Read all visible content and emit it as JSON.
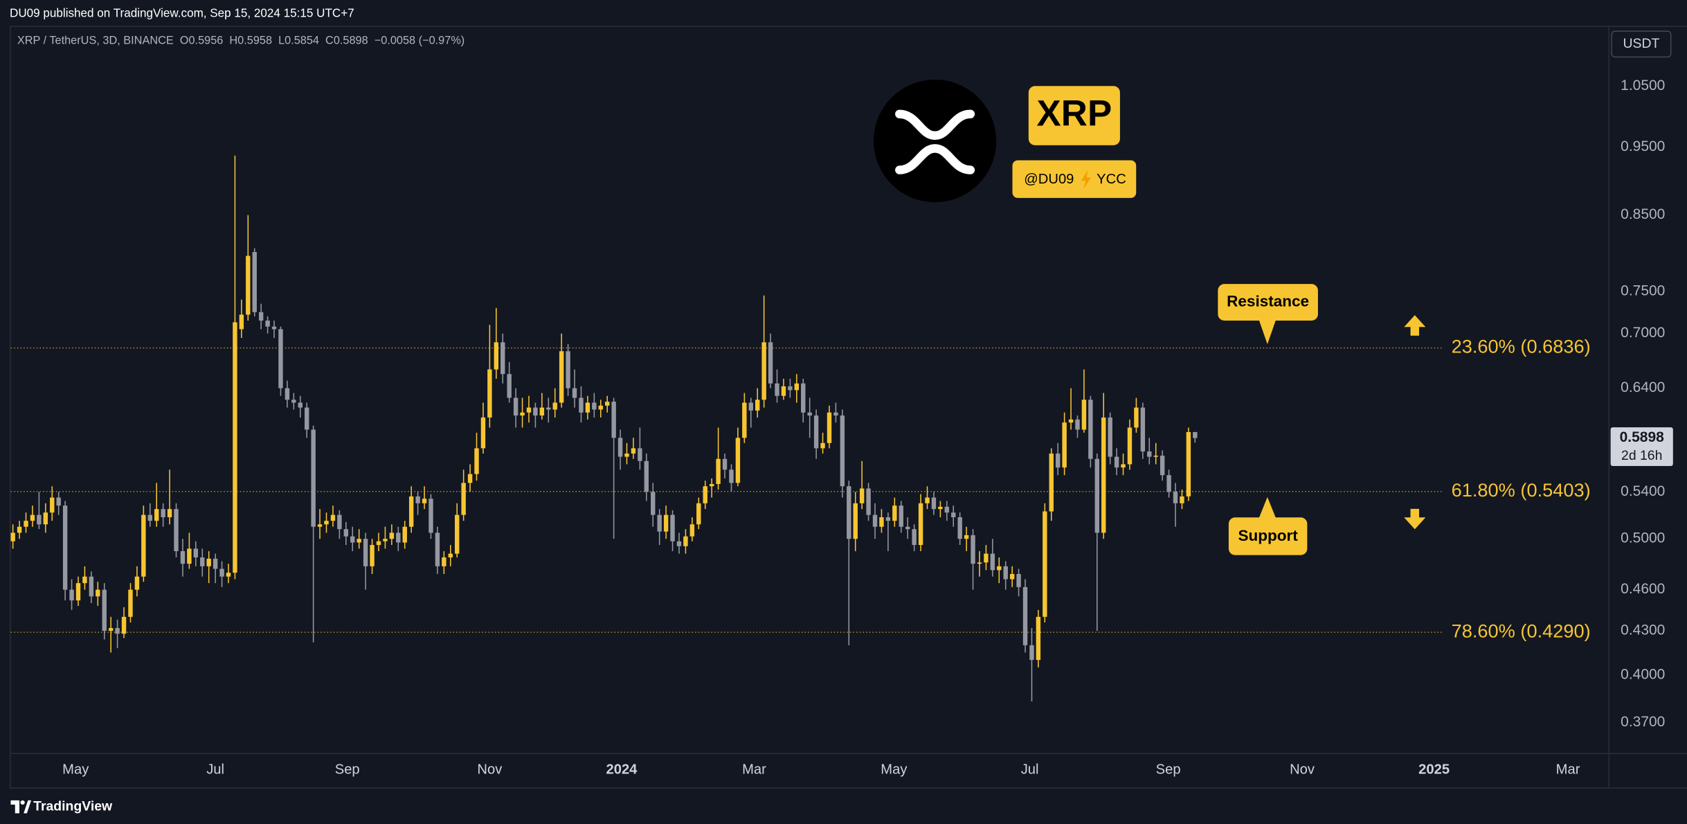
{
  "header": "DU09 published on TradingView.com, Sep 15, 2024 15:15 UTC+7",
  "chart_data": {
    "type": "candlestick",
    "title": "XRP / TetherUS, 3D, BINANCE  O0.5956  H0.5958  L0.5854  C0.5898  −0.0058 (−0.97%)",
    "up_color": "#f7c531",
    "down_color": "#9598a1",
    "log_scale": true,
    "grid": false,
    "ylim": [
      0.352,
      1.157
    ],
    "yticks": [
      {
        "value": 1.05,
        "label": "1.0500"
      },
      {
        "value": 0.95,
        "label": "0.9500"
      },
      {
        "value": 0.85,
        "label": "0.8500"
      },
      {
        "value": 0.75,
        "label": "0.7500"
      },
      {
        "value": 0.7,
        "label": "0.7000"
      },
      {
        "value": 0.64,
        "label": "0.6400"
      },
      {
        "value": 0.54,
        "label": "0.5400"
      },
      {
        "value": 0.5,
        "label": "0.5000"
      },
      {
        "value": 0.46,
        "label": "0.4600"
      },
      {
        "value": 0.43,
        "label": "0.4300"
      },
      {
        "value": 0.4,
        "label": "0.4000"
      },
      {
        "value": 0.37,
        "label": "0.3700"
      }
    ],
    "xlim": [
      -0.33,
      244.3
    ],
    "xticks": [
      {
        "value": 9.6,
        "label": "May"
      },
      {
        "value": 31.0,
        "label": "Jul"
      },
      {
        "value": 51.2,
        "label": "Sep"
      },
      {
        "value": 73.0,
        "label": "Nov"
      },
      {
        "value": 93.2,
        "label": "2024"
      },
      {
        "value": 113.5,
        "label": "Mar"
      },
      {
        "value": 134.9,
        "label": "May"
      },
      {
        "value": 155.7,
        "label": "Jul"
      },
      {
        "value": 176.9,
        "label": "Sep"
      },
      {
        "value": 197.4,
        "label": "Nov"
      },
      {
        "value": 217.6,
        "label": "2025"
      },
      {
        "value": 238.1,
        "label": "Mar"
      }
    ],
    "currency": "USDT",
    "last_price": 0.5898,
    "countdown": "2d 16h",
    "fib_color": "#f7c531",
    "fib_levels": [
      {
        "value": 0.6836,
        "label": "23.60% (0.6836)"
      },
      {
        "value": 0.5403,
        "label": "61.80% (0.5403)"
      },
      {
        "value": 0.429,
        "label": "78.60% (0.4290)"
      }
    ],
    "annotations": {
      "symbol": "XRP",
      "handle": "@DU09",
      "group": "YCC",
      "resistance": "Resistance",
      "support": "Support"
    },
    "candles": [
      [
        0.498,
        0.512,
        0.492,
        0.505
      ],
      [
        0.505,
        0.515,
        0.5,
        0.51
      ],
      [
        0.51,
        0.522,
        0.505,
        0.515
      ],
      [
        0.515,
        0.528,
        0.51,
        0.52
      ],
      [
        0.52,
        0.54,
        0.508,
        0.512
      ],
      [
        0.512,
        0.53,
        0.505,
        0.522
      ],
      [
        0.522,
        0.545,
        0.515,
        0.535
      ],
      [
        0.535,
        0.54,
        0.52,
        0.528
      ],
      [
        0.528,
        0.532,
        0.452,
        0.46
      ],
      [
        0.46,
        0.468,
        0.445,
        0.452
      ],
      [
        0.452,
        0.47,
        0.448,
        0.465
      ],
      [
        0.465,
        0.478,
        0.46,
        0.47
      ],
      [
        0.47,
        0.474,
        0.45,
        0.455
      ],
      [
        0.455,
        0.466,
        0.448,
        0.46
      ],
      [
        0.46,
        0.465,
        0.424,
        0.43
      ],
      [
        0.43,
        0.44,
        0.415,
        0.432
      ],
      [
        0.432,
        0.438,
        0.418,
        0.428
      ],
      [
        0.428,
        0.447,
        0.425,
        0.44
      ],
      [
        0.44,
        0.465,
        0.436,
        0.46
      ],
      [
        0.46,
        0.478,
        0.455,
        0.47
      ],
      [
        0.47,
        0.528,
        0.466,
        0.52
      ],
      [
        0.52,
        0.53,
        0.51,
        0.515
      ],
      [
        0.515,
        0.548,
        0.51,
        0.525
      ],
      [
        0.525,
        0.53,
        0.51,
        0.518
      ],
      [
        0.518,
        0.56,
        0.512,
        0.525
      ],
      [
        0.525,
        0.53,
        0.485,
        0.49
      ],
      [
        0.49,
        0.5,
        0.47,
        0.48
      ],
      [
        0.48,
        0.505,
        0.476,
        0.492
      ],
      [
        0.492,
        0.498,
        0.478,
        0.485
      ],
      [
        0.485,
        0.492,
        0.47,
        0.478
      ],
      [
        0.478,
        0.49,
        0.465,
        0.484
      ],
      [
        0.484,
        0.488,
        0.465,
        0.476
      ],
      [
        0.476,
        0.482,
        0.462,
        0.47
      ],
      [
        0.47,
        0.48,
        0.465,
        0.473
      ],
      [
        0.473,
        0.937,
        0.468,
        0.713
      ],
      [
        0.705,
        0.74,
        0.695,
        0.722
      ],
      [
        0.722,
        0.85,
        0.715,
        0.795
      ],
      [
        0.8,
        0.805,
        0.72,
        0.725
      ],
      [
        0.725,
        0.735,
        0.705,
        0.715
      ],
      [
        0.715,
        0.72,
        0.7,
        0.708
      ],
      [
        0.708,
        0.715,
        0.695,
        0.705
      ],
      [
        0.705,
        0.708,
        0.632,
        0.64
      ],
      [
        0.64,
        0.648,
        0.62,
        0.628
      ],
      [
        0.628,
        0.635,
        0.618,
        0.625
      ],
      [
        0.625,
        0.632,
        0.61,
        0.62
      ],
      [
        0.62,
        0.625,
        0.59,
        0.598
      ],
      [
        0.598,
        0.602,
        0.422,
        0.51
      ],
      [
        0.51,
        0.525,
        0.5,
        0.512
      ],
      [
        0.512,
        0.522,
        0.505,
        0.515
      ],
      [
        0.515,
        0.528,
        0.51,
        0.52
      ],
      [
        0.52,
        0.524,
        0.5,
        0.508
      ],
      [
        0.508,
        0.514,
        0.495,
        0.502
      ],
      [
        0.502,
        0.51,
        0.49,
        0.497
      ],
      [
        0.497,
        0.508,
        0.492,
        0.5
      ],
      [
        0.5,
        0.505,
        0.46,
        0.478
      ],
      [
        0.478,
        0.5,
        0.472,
        0.495
      ],
      [
        0.495,
        0.505,
        0.49,
        0.498
      ],
      [
        0.498,
        0.51,
        0.492,
        0.5
      ],
      [
        0.5,
        0.512,
        0.495,
        0.505
      ],
      [
        0.505,
        0.51,
        0.49,
        0.497
      ],
      [
        0.497,
        0.515,
        0.492,
        0.51
      ],
      [
        0.51,
        0.545,
        0.505,
        0.536
      ],
      [
        0.536,
        0.54,
        0.52,
        0.53
      ],
      [
        0.53,
        0.545,
        0.525,
        0.534
      ],
      [
        0.534,
        0.538,
        0.5,
        0.505
      ],
      [
        0.505,
        0.51,
        0.472,
        0.478
      ],
      [
        0.478,
        0.49,
        0.472,
        0.485
      ],
      [
        0.485,
        0.495,
        0.478,
        0.488
      ],
      [
        0.488,
        0.53,
        0.485,
        0.52
      ],
      [
        0.52,
        0.56,
        0.515,
        0.548
      ],
      [
        0.548,
        0.565,
        0.54,
        0.556
      ],
      [
        0.556,
        0.595,
        0.55,
        0.58
      ],
      [
        0.58,
        0.625,
        0.575,
        0.61
      ],
      [
        0.61,
        0.71,
        0.6,
        0.66
      ],
      [
        0.66,
        0.73,
        0.65,
        0.69
      ],
      [
        0.69,
        0.7,
        0.645,
        0.655
      ],
      [
        0.655,
        0.668,
        0.625,
        0.63
      ],
      [
        0.63,
        0.64,
        0.6,
        0.612
      ],
      [
        0.612,
        0.63,
        0.6,
        0.615
      ],
      [
        0.615,
        0.632,
        0.605,
        0.62
      ],
      [
        0.62,
        0.625,
        0.6,
        0.612
      ],
      [
        0.612,
        0.635,
        0.608,
        0.62
      ],
      [
        0.62,
        0.63,
        0.605,
        0.618
      ],
      [
        0.618,
        0.64,
        0.61,
        0.625
      ],
      [
        0.625,
        0.7,
        0.62,
        0.68
      ],
      [
        0.68,
        0.688,
        0.632,
        0.64
      ],
      [
        0.64,
        0.66,
        0.62,
        0.63
      ],
      [
        0.63,
        0.642,
        0.605,
        0.615
      ],
      [
        0.615,
        0.632,
        0.608,
        0.625
      ],
      [
        0.625,
        0.635,
        0.61,
        0.618
      ],
      [
        0.618,
        0.628,
        0.61,
        0.622
      ],
      [
        0.622,
        0.632,
        0.615,
        0.626
      ],
      [
        0.626,
        0.63,
        0.5,
        0.59
      ],
      [
        0.59,
        0.598,
        0.56,
        0.572
      ],
      [
        0.572,
        0.585,
        0.565,
        0.575
      ],
      [
        0.575,
        0.59,
        0.57,
        0.58
      ],
      [
        0.58,
        0.6,
        0.56,
        0.568
      ],
      [
        0.568,
        0.575,
        0.532,
        0.54
      ],
      [
        0.54,
        0.548,
        0.51,
        0.52
      ],
      [
        0.52,
        0.525,
        0.495,
        0.506
      ],
      [
        0.506,
        0.528,
        0.5,
        0.52
      ],
      [
        0.52,
        0.524,
        0.49,
        0.498
      ],
      [
        0.498,
        0.505,
        0.488,
        0.494
      ],
      [
        0.494,
        0.508,
        0.488,
        0.502
      ],
      [
        0.502,
        0.518,
        0.498,
        0.512
      ],
      [
        0.512,
        0.535,
        0.508,
        0.53
      ],
      [
        0.53,
        0.55,
        0.525,
        0.545
      ],
      [
        0.545,
        0.552,
        0.535,
        0.547
      ],
      [
        0.547,
        0.6,
        0.542,
        0.57
      ],
      [
        0.57,
        0.575,
        0.552,
        0.56
      ],
      [
        0.56,
        0.565,
        0.54,
        0.548
      ],
      [
        0.548,
        0.6,
        0.545,
        0.59
      ],
      [
        0.59,
        0.635,
        0.585,
        0.625
      ],
      [
        0.625,
        0.63,
        0.6,
        0.617
      ],
      [
        0.617,
        0.64,
        0.61,
        0.628
      ],
      [
        0.628,
        0.745,
        0.62,
        0.69
      ],
      [
        0.69,
        0.7,
        0.64,
        0.645
      ],
      [
        0.645,
        0.66,
        0.625,
        0.632
      ],
      [
        0.632,
        0.65,
        0.628,
        0.642
      ],
      [
        0.642,
        0.65,
        0.63,
        0.638
      ],
      [
        0.638,
        0.655,
        0.625,
        0.645
      ],
      [
        0.645,
        0.65,
        0.605,
        0.615
      ],
      [
        0.615,
        0.63,
        0.59,
        0.612
      ],
      [
        0.612,
        0.618,
        0.57,
        0.58
      ],
      [
        0.58,
        0.595,
        0.575,
        0.585
      ],
      [
        0.585,
        0.622,
        0.58,
        0.615
      ],
      [
        0.615,
        0.625,
        0.605,
        0.612
      ],
      [
        0.612,
        0.618,
        0.535,
        0.545
      ],
      [
        0.545,
        0.55,
        0.42,
        0.5
      ],
      [
        0.5,
        0.54,
        0.49,
        0.53
      ],
      [
        0.53,
        0.568,
        0.525,
        0.543
      ],
      [
        0.543,
        0.548,
        0.515,
        0.52
      ],
      [
        0.52,
        0.53,
        0.5,
        0.51
      ],
      [
        0.51,
        0.525,
        0.505,
        0.518
      ],
      [
        0.518,
        0.522,
        0.49,
        0.515
      ],
      [
        0.515,
        0.535,
        0.51,
        0.528
      ],
      [
        0.528,
        0.532,
        0.505,
        0.51
      ],
      [
        0.51,
        0.518,
        0.5,
        0.508
      ],
      [
        0.508,
        0.512,
        0.49,
        0.495
      ],
      [
        0.495,
        0.538,
        0.49,
        0.53
      ],
      [
        0.53,
        0.545,
        0.525,
        0.535
      ],
      [
        0.535,
        0.54,
        0.52,
        0.525
      ],
      [
        0.525,
        0.532,
        0.518,
        0.527
      ],
      [
        0.527,
        0.532,
        0.515,
        0.522
      ],
      [
        0.522,
        0.528,
        0.51,
        0.518
      ],
      [
        0.518,
        0.522,
        0.495,
        0.5
      ],
      [
        0.5,
        0.51,
        0.49,
        0.503
      ],
      [
        0.503,
        0.508,
        0.46,
        0.48
      ],
      [
        0.48,
        0.49,
        0.47,
        0.481
      ],
      [
        0.481,
        0.495,
        0.475,
        0.488
      ],
      [
        0.488,
        0.5,
        0.47,
        0.475
      ],
      [
        0.475,
        0.485,
        0.465,
        0.478
      ],
      [
        0.478,
        0.482,
        0.46,
        0.468
      ],
      [
        0.468,
        0.478,
        0.462,
        0.472
      ],
      [
        0.472,
        0.476,
        0.455,
        0.462
      ],
      [
        0.462,
        0.468,
        0.415,
        0.42
      ],
      [
        0.42,
        0.432,
        0.383,
        0.41
      ],
      [
        0.41,
        0.445,
        0.405,
        0.44
      ],
      [
        0.44,
        0.53,
        0.436,
        0.523
      ],
      [
        0.523,
        0.58,
        0.515,
        0.575
      ],
      [
        0.575,
        0.585,
        0.555,
        0.562
      ],
      [
        0.562,
        0.615,
        0.555,
        0.605
      ],
      [
        0.605,
        0.64,
        0.598,
        0.608
      ],
      [
        0.608,
        0.612,
        0.59,
        0.598
      ],
      [
        0.598,
        0.66,
        0.595,
        0.628
      ],
      [
        0.628,
        0.632,
        0.562,
        0.57
      ],
      [
        0.57,
        0.575,
        0.43,
        0.505
      ],
      [
        0.505,
        0.635,
        0.5,
        0.61
      ],
      [
        0.61,
        0.615,
        0.565,
        0.572
      ],
      [
        0.572,
        0.58,
        0.555,
        0.562
      ],
      [
        0.562,
        0.575,
        0.555,
        0.565
      ],
      [
        0.565,
        0.608,
        0.56,
        0.6
      ],
      [
        0.6,
        0.63,
        0.595,
        0.62
      ],
      [
        0.62,
        0.625,
        0.57,
        0.577
      ],
      [
        0.577,
        0.59,
        0.565,
        0.572
      ],
      [
        0.572,
        0.585,
        0.565,
        0.573
      ],
      [
        0.573,
        0.578,
        0.55,
        0.555
      ],
      [
        0.555,
        0.56,
        0.535,
        0.54
      ],
      [
        0.54,
        0.548,
        0.51,
        0.53
      ],
      [
        0.53,
        0.542,
        0.525,
        0.536
      ],
      [
        0.536,
        0.6,
        0.532,
        0.5956
      ],
      [
        0.5956,
        0.5958,
        0.5854,
        0.5898
      ]
    ]
  },
  "footer": "TradingView"
}
